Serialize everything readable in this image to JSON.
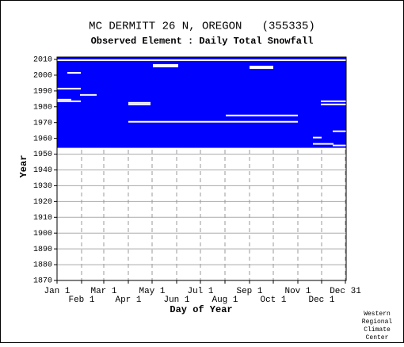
{
  "chart_data": {
    "type": "coverage",
    "title": "MC DERMITT 26 N, OREGON   (355335)",
    "subtitle": "Observed Element : Daily Total Snowfall",
    "xlabel": "Day of Year",
    "ylabel": "Year",
    "footer": [
      "Western",
      "Regional",
      "Climate",
      "Center"
    ],
    "color": "#0000ff",
    "xlim": [
      1,
      366
    ],
    "ylim": [
      1870,
      2011.5
    ],
    "xticks": [
      {
        "value": 1,
        "label": "Jan 1"
      },
      {
        "value": 32,
        "label": "Feb 1"
      },
      {
        "value": 60,
        "label": "Mar 1"
      },
      {
        "value": 91,
        "label": "Apr 1"
      },
      {
        "value": 121,
        "label": "May 1"
      },
      {
        "value": 152,
        "label": "Jun 1"
      },
      {
        "value": 182,
        "label": "Jul 1"
      },
      {
        "value": 213,
        "label": "Aug 1"
      },
      {
        "value": 244,
        "label": "Sep 1"
      },
      {
        "value": 274,
        "label": "Oct 1"
      },
      {
        "value": 305,
        "label": "Nov 1"
      },
      {
        "value": 335,
        "label": "Dec 1"
      },
      {
        "value": 365,
        "label": "Dec 31"
      }
    ],
    "yticks": [
      1870,
      1880,
      1890,
      1900,
      1910,
      1920,
      1930,
      1940,
      1950,
      1960,
      1970,
      1980,
      1990,
      2000,
      2010
    ],
    "grid": true,
    "coverage": {
      "days": [
        1,
        366
      ],
      "years": [
        1954,
        2011.5
      ]
    },
    "gaps": [
      [
        2009,
        1,
        365
      ],
      [
        2006,
        122,
        153
      ],
      [
        2005,
        122,
        153
      ],
      [
        2004,
        244,
        273
      ],
      [
        2005,
        244,
        273
      ],
      [
        2001,
        14,
        30
      ],
      [
        1991,
        1,
        30
      ],
      [
        1987,
        30,
        50
      ],
      [
        1984,
        1,
        18
      ],
      [
        1983,
        1,
        30
      ],
      [
        1982,
        91,
        118
      ],
      [
        1981,
        91,
        118
      ],
      [
        1983,
        334,
        365
      ],
      [
        1981,
        334,
        365
      ],
      [
        1974,
        214,
        304
      ],
      [
        1970,
        91,
        304
      ],
      [
        1960,
        324,
        334
      ],
      [
        1956,
        324,
        349
      ],
      [
        1955,
        349,
        365
      ],
      [
        1964,
        349,
        365
      ]
    ]
  }
}
